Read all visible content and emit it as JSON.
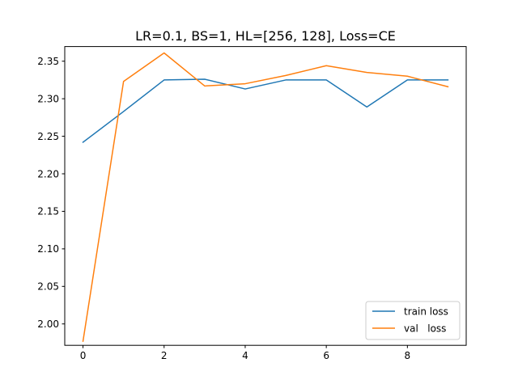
{
  "chart_data": {
    "type": "line",
    "title": "LR=0.1, BS=1, HL=[256, 128], Loss=CE",
    "xlabel": "",
    "ylabel": "",
    "x": [
      0,
      1,
      2,
      3,
      4,
      5,
      6,
      7,
      8,
      9
    ],
    "xlim": [
      -0.45,
      9.45
    ],
    "ylim": [
      1.9715,
      2.3695
    ],
    "xticks": [
      0,
      2,
      4,
      6,
      8
    ],
    "xtick_labels": [
      "0",
      "2",
      "4",
      "6",
      "8"
    ],
    "yticks": [
      2.0,
      2.05,
      2.1,
      2.15,
      2.2,
      2.25,
      2.3,
      2.35
    ],
    "ytick_labels": [
      "2.00",
      "2.05",
      "2.10",
      "2.15",
      "2.20",
      "2.25",
      "2.30",
      "2.35"
    ],
    "grid": false,
    "legend_position": "lower-right",
    "series": [
      {
        "name": "train loss",
        "color": "#1f77b4",
        "values": [
          2.242,
          2.283,
          2.325,
          2.326,
          2.313,
          2.325,
          2.325,
          2.289,
          2.325,
          2.325
        ]
      },
      {
        "name": "val   loss",
        "color": "#ff7f0e",
        "values": [
          1.977,
          2.323,
          2.361,
          2.317,
          2.32,
          2.331,
          2.344,
          2.335,
          2.33,
          2.316
        ]
      }
    ]
  }
}
